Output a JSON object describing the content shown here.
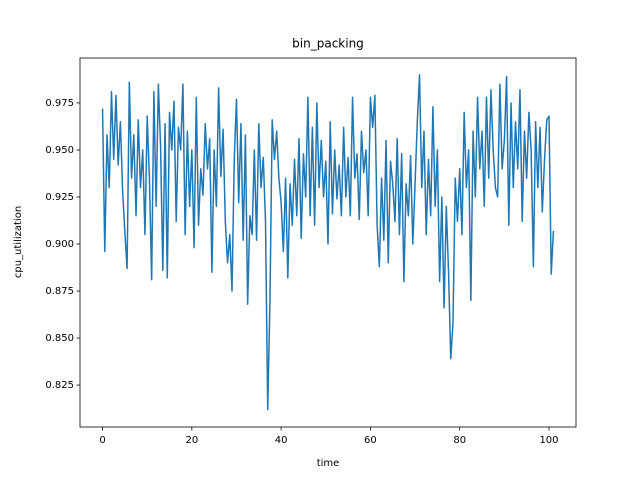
{
  "chart_data": {
    "type": "line",
    "title": "bin_packing",
    "xlabel": "time",
    "ylabel": "cpu_utilization",
    "color": "#1f77b4",
    "x": [
      0,
      0.5,
      1,
      1.5,
      2,
      2.5,
      3,
      3.5,
      4,
      4.5,
      5,
      5.5,
      6,
      6.5,
      7,
      7.5,
      8,
      8.5,
      9,
      9.5,
      10,
      10.5,
      11,
      11.5,
      12,
      12.5,
      13,
      13.5,
      14,
      14.5,
      15,
      15.5,
      16,
      16.5,
      17,
      17.5,
      18,
      18.5,
      19,
      19.5,
      20,
      20.5,
      21,
      21.5,
      22,
      22.5,
      23,
      23.5,
      24,
      24.5,
      25,
      25.5,
      26,
      26.5,
      27,
      27.5,
      28,
      28.5,
      29,
      29.5,
      30,
      30.5,
      31,
      31.5,
      32,
      32.5,
      33,
      33.5,
      34,
      34.5,
      35,
      35.5,
      36,
      36.5,
      37,
      37.5,
      38,
      38.5,
      39,
      39.5,
      40,
      40.5,
      41,
      41.5,
      42,
      42.5,
      43,
      43.5,
      44,
      44.5,
      45,
      45.5,
      46,
      46.5,
      47,
      47.5,
      48,
      48.5,
      49,
      49.5,
      50,
      50.5,
      51,
      51.5,
      52,
      52.5,
      53,
      53.5,
      54,
      54.5,
      55,
      55.5,
      56,
      56.5,
      57,
      57.5,
      58,
      58.5,
      59,
      59.5,
      60,
      60.5,
      61,
      61.5,
      62,
      62.5,
      63,
      63.5,
      64,
      64.5,
      65,
      65.5,
      66,
      66.5,
      67,
      67.5,
      68,
      68.5,
      69,
      69.5,
      70,
      70.5,
      71,
      71.5,
      72,
      72.5,
      73,
      73.5,
      74,
      74.5,
      75,
      75.5,
      76,
      76.5,
      77,
      77.5,
      78,
      78.5,
      79,
      79.5,
      80,
      80.5,
      81,
      81.5,
      82,
      82.5,
      83,
      83.5,
      84,
      84.5,
      85,
      85.5,
      86,
      86.5,
      87,
      87.5,
      88,
      88.5,
      89,
      89.5,
      90,
      90.5,
      91,
      91.5,
      92,
      92.5,
      93,
      93.5,
      94,
      94.5,
      95,
      95.5,
      96,
      96.5,
      97,
      97.5,
      98,
      98.5,
      99,
      99.5,
      100,
      100.5,
      101
    ],
    "values": [
      0.972,
      0.896,
      0.958,
      0.93,
      0.981,
      0.945,
      0.979,
      0.942,
      0.965,
      0.928,
      0.906,
      0.887,
      0.986,
      0.935,
      0.958,
      0.915,
      0.966,
      0.93,
      0.95,
      0.905,
      0.968,
      0.935,
      0.881,
      0.981,
      0.92,
      0.985,
      0.952,
      0.886,
      0.964,
      0.882,
      0.97,
      0.95,
      0.976,
      0.912,
      0.962,
      0.95,
      0.985,
      0.905,
      0.96,
      0.92,
      0.95,
      0.898,
      0.978,
      0.91,
      0.94,
      0.926,
      0.964,
      0.94,
      0.956,
      0.885,
      0.95,
      0.92,
      0.983,
      0.936,
      0.961,
      0.912,
      0.89,
      0.905,
      0.875,
      0.945,
      0.977,
      0.922,
      0.964,
      0.902,
      0.958,
      0.868,
      0.915,
      0.905,
      0.95,
      0.902,
      0.964,
      0.93,
      0.946,
      0.912,
      0.812,
      0.87,
      0.966,
      0.945,
      0.96,
      0.935,
      0.922,
      0.896,
      0.935,
      0.882,
      0.932,
      0.91,
      0.945,
      0.915,
      0.956,
      0.903,
      0.948,
      0.925,
      0.978,
      0.915,
      0.962,
      0.91,
      0.975,
      0.93,
      0.955,
      0.925,
      0.944,
      0.9,
      0.965,
      0.916,
      0.95,
      0.924,
      0.942,
      0.915,
      0.962,
      0.925,
      0.946,
      0.915,
      0.978,
      0.935,
      0.948,
      0.913,
      0.96,
      0.938,
      0.95,
      0.915,
      0.978,
      0.962,
      0.979,
      0.91,
      0.888,
      0.935,
      0.902,
      0.955,
      0.89,
      0.944,
      0.932,
      0.912,
      0.956,
      0.905,
      0.948,
      0.88,
      0.932,
      0.915,
      0.947,
      0.9,
      0.932,
      0.965,
      0.99,
      0.93,
      0.96,
      0.905,
      0.945,
      0.915,
      0.973,
      0.92,
      0.95,
      0.88,
      0.925,
      0.866,
      0.92,
      0.885,
      0.839,
      0.858,
      0.935,
      0.912,
      0.94,
      0.905,
      0.97,
      0.93,
      0.95,
      0.87,
      0.96,
      0.925,
      0.978,
      0.94,
      0.96,
      0.92,
      0.978,
      0.935,
      0.982,
      0.95,
      0.93,
      0.925,
      0.985,
      0.94,
      0.955,
      0.989,
      0.91,
      0.975,
      0.93,
      0.965,
      0.94,
      0.982,
      0.912,
      0.96,
      0.935,
      0.97,
      0.95,
      0.888,
      0.965,
      0.93,
      0.962,
      0.917,
      0.945,
      0.966,
      0.968,
      0.884,
      0.907
    ],
    "xlim": [
      -5.05,
      106.05
    ],
    "xticks": [
      0,
      20,
      40,
      60,
      80,
      100
    ],
    "ylim": [
      0.8027,
      0.9989
    ],
    "yticks": [
      0.825,
      {
        "value": 0.85,
        "label": "0.850"
      },
      0.875,
      {
        "value": 0.9,
        "label": "0.900"
      },
      0.925,
      {
        "value": 0.95,
        "label": "0.950"
      },
      0.975
    ]
  }
}
